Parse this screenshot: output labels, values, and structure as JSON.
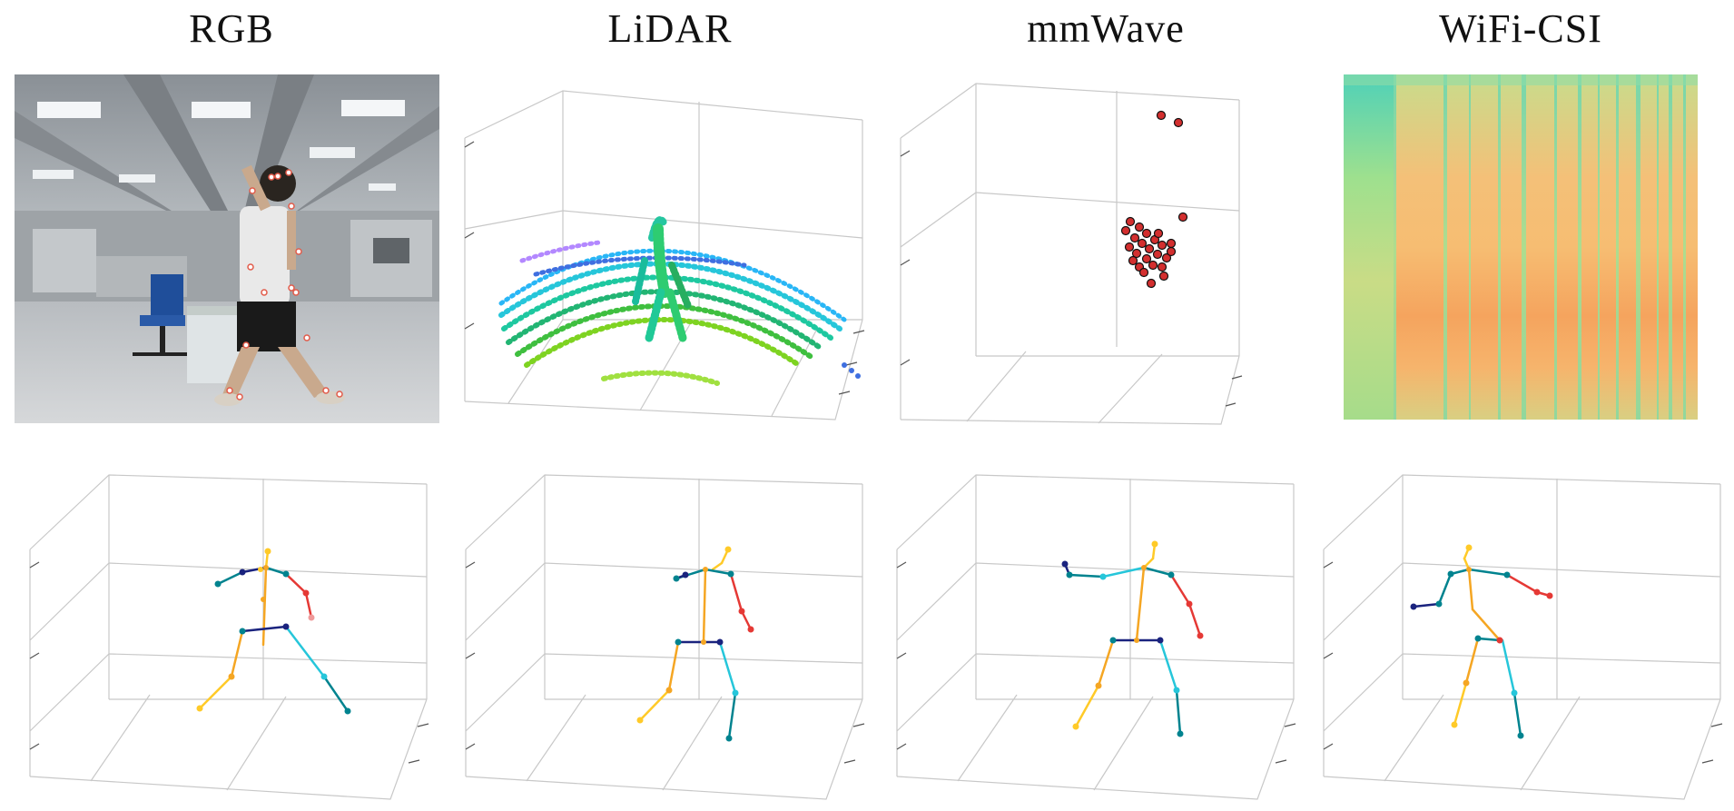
{
  "columns": [
    {
      "title": "RGB"
    },
    {
      "title": "LiDAR"
    },
    {
      "title": "mmWave"
    },
    {
      "title": "WiFi-CSI"
    }
  ],
  "colors": {
    "grid": "#c8c8c8",
    "axis": "#555555",
    "spine": "#f5a623",
    "left_arm_outer": "#1a237e",
    "left_arm_inner": "#00838f",
    "right_arm": "#e53935",
    "right_leg": "#1e88e5",
    "left_leg": "#f5a623",
    "head": "#ffca28",
    "mmwave_points": "#d32f2f"
  },
  "icons": {
    "rgb_scene": "person-in-office-photo",
    "lidar": "point-cloud",
    "mmwave": "radar-point-scatter",
    "csi": "csi-heatmap"
  }
}
